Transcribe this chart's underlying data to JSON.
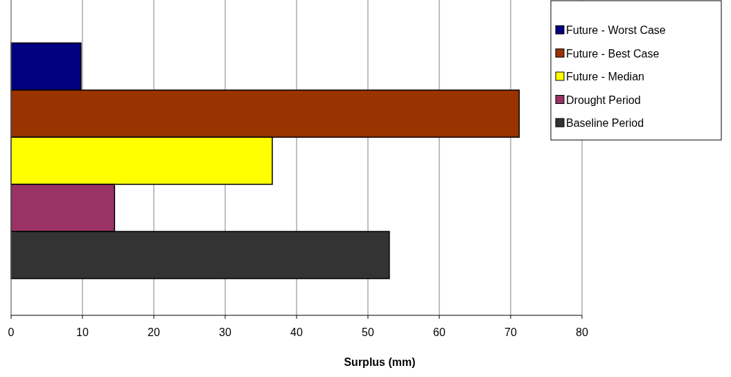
{
  "chart_data": {
    "type": "bar",
    "orientation": "horizontal",
    "xlabel": "Surplus (mm)",
    "categories": [
      null
    ],
    "series": [
      {
        "name": "Future - Worst Case",
        "color": "#000080",
        "values": [
          9.8
        ]
      },
      {
        "name": "Future - Best Case",
        "color": "#993300",
        "values": [
          71.2
        ]
      },
      {
        "name": "Future - Median",
        "color": "#ffff00",
        "values": [
          36.6
        ]
      },
      {
        "name": "Drought Period",
        "color": "#993366",
        "values": [
          14.5
        ]
      },
      {
        "name": "Baseline Period",
        "color": "#333333",
        "values": [
          53.0
        ]
      }
    ],
    "xlim": [
      0,
      80
    ],
    "xticks": [
      0,
      10,
      20,
      30,
      40,
      50,
      60,
      70,
      80
    ],
    "grid": "x",
    "legend": "top right"
  }
}
